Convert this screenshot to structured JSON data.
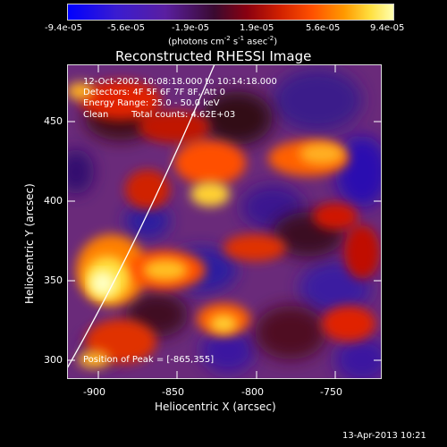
{
  "colorbar": {
    "tick_labels": [
      "-9.4e-05",
      "-5.6e-05",
      "-1.9e-05",
      "1.9e-05",
      "5.6e-05",
      "9.4e-05"
    ],
    "units_main": "(photons cm",
    "units_sup1": "-2",
    "units_mid": " s",
    "units_sup2": "-1",
    "units_end": " asec",
    "units_sup3": "-2",
    "units_close": ")"
  },
  "plot": {
    "title": "Reconstructed RHESSI Image",
    "time_range": "12-Oct-2002 10:08:18.000 to 10:14:18.000",
    "detectors": "Detectors: 4F 5F 6F 7F 8F, Att 0",
    "energy": "Energy Range: 25.0 - 50.0 keV",
    "algorithm": "Clean",
    "total_counts": "Total counts: 4.62E+03",
    "peak": "Position of Peak = [-865,355]",
    "xlabel": "Heliocentric X (arcsec)",
    "ylabel": "Heliocentric Y (arcsec)",
    "xticks": [
      "-900",
      "-850",
      "-800",
      "-750"
    ],
    "yticks": [
      "450",
      "400",
      "350",
      "300"
    ]
  },
  "footer": {
    "timestamp": "13-Apr-2013 10:21"
  },
  "colors": {
    "background": "#000000",
    "colormap_low": "#1010ff",
    "colormap_mid": "#8a2a8a",
    "colormap_high": "#ffff80"
  }
}
